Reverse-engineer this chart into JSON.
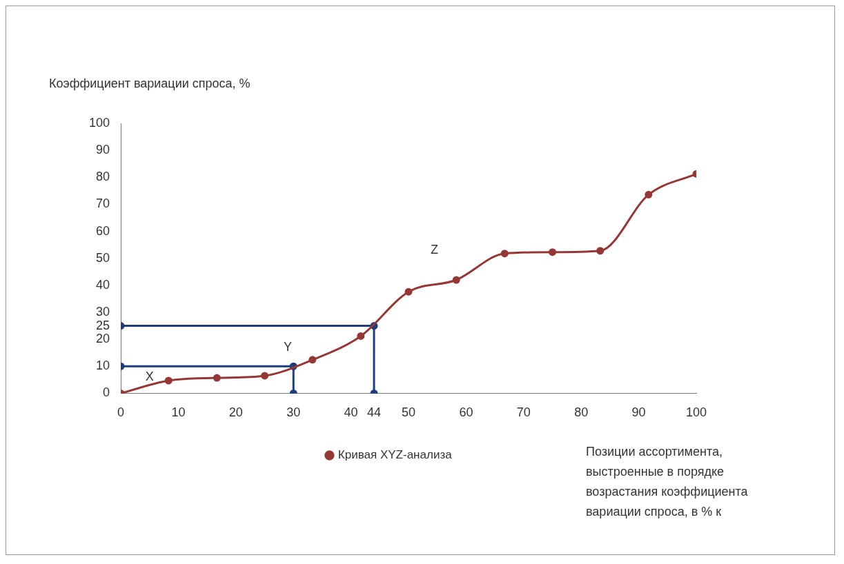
{
  "chart_data": {
    "type": "line",
    "ylabel": "Коэффициент вариации спроса, %",
    "xlabel": "Позиции ассортимента, выстроенные в порядке возрастания коэффициента вариации спроса, в % к",
    "x": [
      0,
      8.3,
      16.7,
      25,
      33.3,
      41.7,
      50,
      58.3,
      66.7,
      75,
      83.3,
      91.7,
      100
    ],
    "series": [
      {
        "name": "Кривая XYZ-анализа",
        "color": "#953735",
        "marker": "circle",
        "values": [
          0,
          4.7,
          5.7,
          6.5,
          12.4,
          21.2,
          37.6,
          42,
          51.8,
          52.3,
          52.8,
          73.6,
          81.3
        ]
      },
      {
        "color": "#1f3d7a",
        "marker": "circle",
        "x": [
          0,
          30,
          30
        ],
        "values": [
          10,
          10,
          0
        ]
      },
      {
        "color": "#1f3d7a",
        "marker": "circle",
        "x": [
          0,
          44,
          44
        ],
        "values": [
          25,
          25,
          0
        ]
      }
    ],
    "xlim": [
      0,
      100
    ],
    "xticks": [
      0,
      10,
      20,
      30,
      40,
      44,
      50,
      60,
      70,
      80,
      90,
      100
    ],
    "ylim": [
      0,
      100
    ],
    "yticks": [
      0,
      10,
      20,
      25,
      30,
      40,
      50,
      60,
      70,
      80,
      90,
      100
    ],
    "grid": false,
    "legend": "bottom",
    "annotations": [
      "X",
      "Y",
      "Z"
    ]
  }
}
